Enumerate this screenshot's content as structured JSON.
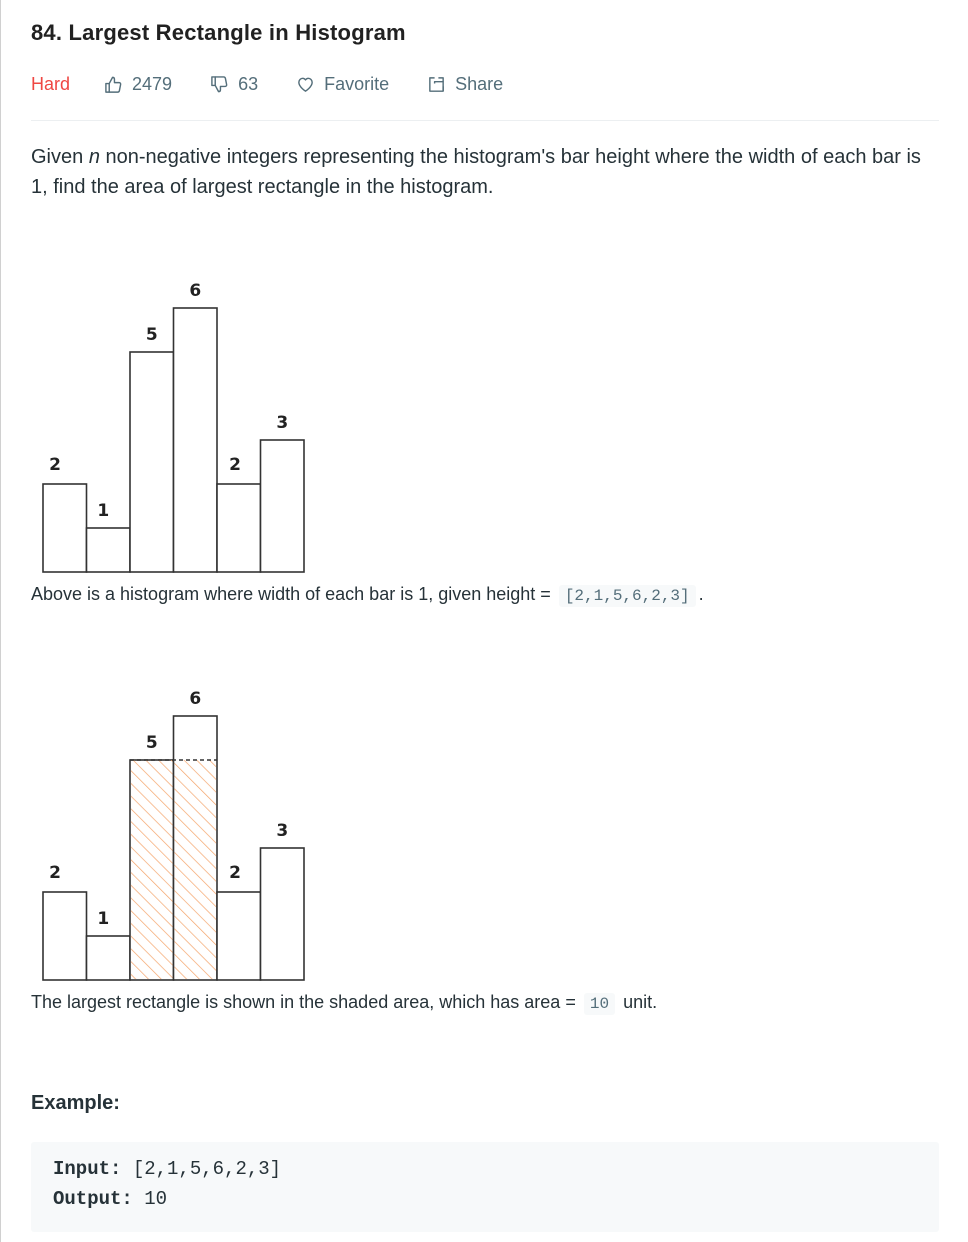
{
  "problem": {
    "title": "84. Largest Rectangle in Histogram",
    "difficulty": "Hard",
    "likes": "2479",
    "dislikes": "63",
    "favorite_label": "Favorite",
    "share_label": "Share"
  },
  "description": {
    "part1": "Given ",
    "var_n": "n",
    "part2": " non-negative integers representing the histogram's bar height where the width of each bar is 1, find the area of largest rectangle in the histogram."
  },
  "figure1": {
    "caption_before": "Above is a histogram where width of each bar is 1, given height =",
    "caption_code": "[2,1,5,6,2,3]",
    "caption_after": "."
  },
  "figure2": {
    "caption_before": "The largest rectangle is shown in the shaded area, which has area =",
    "caption_code": "10",
    "caption_after": "unit."
  },
  "chart_data": [
    {
      "type": "bar",
      "categories": [
        "",
        "",
        "",
        "",
        "",
        ""
      ],
      "values": [
        2,
        1,
        5,
        6,
        2,
        3
      ],
      "data_labels": [
        "2",
        "1",
        "5",
        "6",
        "2",
        "3"
      ],
      "ylim": [
        0,
        6
      ],
      "grid": false
    },
    {
      "type": "bar",
      "categories": [
        "",
        "",
        "",
        "",
        "",
        ""
      ],
      "values": [
        2,
        1,
        5,
        6,
        2,
        3
      ],
      "data_labels": [
        "2",
        "1",
        "5",
        "6",
        "2",
        "3"
      ],
      "ylim": [
        0,
        6
      ],
      "grid": false,
      "highlight": {
        "start_index": 2,
        "end_index": 3,
        "height": 5,
        "pattern": "hatched",
        "color": "#f4a46a"
      }
    }
  ],
  "example": {
    "heading": "Example:",
    "input_label": "Input:",
    "input_value": " [2,1,5,6,2,3]",
    "output_label": "Output:",
    "output_value": " 10"
  },
  "colors": {
    "hard": "#ef4743",
    "hatch": "#f4a46a",
    "text": "#263238",
    "meta": "#546e7a"
  },
  "icons": {
    "likes": "thumbs-up-icon",
    "dislikes": "thumbs-down-icon",
    "favorite": "heart-icon",
    "share": "share-icon"
  }
}
